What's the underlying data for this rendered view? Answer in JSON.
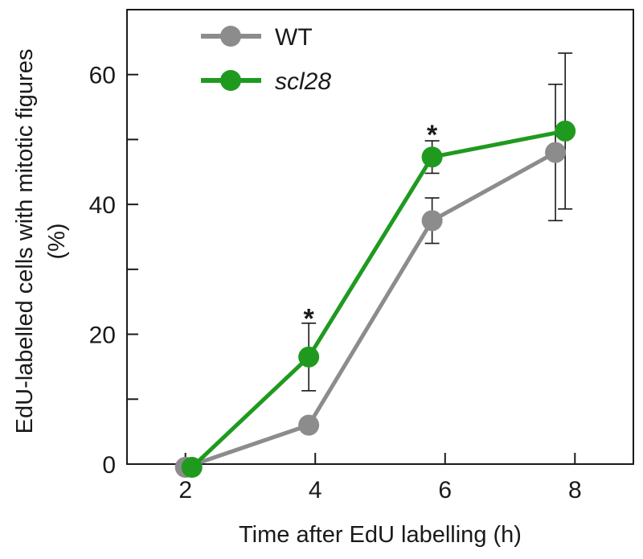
{
  "chart_data": {
    "type": "line",
    "title": "",
    "xlabel": "Time after EdU labelling (h)",
    "ylabel": "EdU-labelled cells with mitotic figures",
    "ylabel_unit": "(%)",
    "xlim": [
      1.1,
      8.9
    ],
    "ylim": [
      0,
      70
    ],
    "x_ticks": [
      2,
      4,
      6,
      8
    ],
    "y_ticks": [
      0,
      20,
      40,
      60
    ],
    "y_minor_ticks": [
      10,
      30,
      50
    ],
    "legend_position": "top-left",
    "series": [
      {
        "name": "WT",
        "color": "#8c8c8c",
        "x": [
          2.0,
          3.9,
          5.8,
          7.7
        ],
        "values": [
          -0.5,
          6,
          37.5,
          48
        ],
        "errors": [
          null,
          null,
          3.5,
          10.5
        ]
      },
      {
        "name": "scl28",
        "color": "#1f9a1f",
        "italic": true,
        "x": [
          2.1,
          3.9,
          5.8,
          7.85
        ],
        "values": [
          -0.5,
          16.5,
          47.3,
          51.3
        ],
        "errors": [
          null,
          5.2,
          2.5,
          12
        ]
      }
    ],
    "annotations": [
      {
        "text": "*",
        "x": 3.9,
        "y": 23.5
      },
      {
        "text": "*",
        "x": 5.8,
        "y": 51.8
      }
    ]
  }
}
